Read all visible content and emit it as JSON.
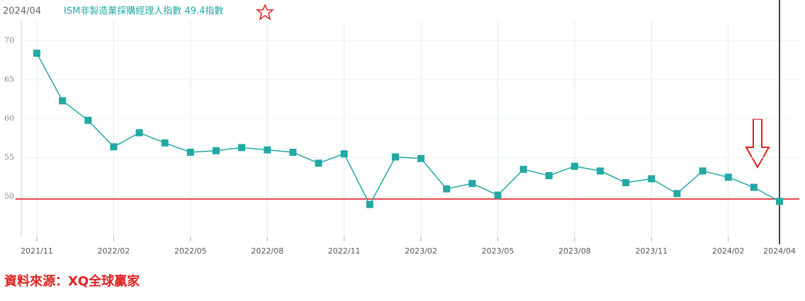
{
  "chart_data": {
    "type": "line",
    "date_label": "2024/04",
    "title": "ISM非製造業採購經理人指數 49.4指數",
    "source": "資料來源：XQ全球贏家",
    "categories": [
      "2021/11",
      null,
      null,
      "2022/02",
      null,
      null,
      "2022/05",
      null,
      null,
      "2022/08",
      null,
      null,
      "2022/11",
      null,
      null,
      "2023/02",
      null,
      null,
      "2023/05",
      null,
      null,
      "2023/08",
      null,
      null,
      "2023/11",
      null,
      null,
      "2024/02",
      null,
      "2024/04"
    ],
    "series": [
      {
        "name": "ISM非製造業採購經理人指數",
        "color": "#22a9a3",
        "values": [
          68.4,
          62.3,
          59.8,
          56.4,
          58.2,
          56.9,
          55.7,
          55.9,
          56.3,
          56.0,
          55.7,
          54.3,
          55.5,
          49.0,
          55.1,
          54.9,
          51.0,
          51.7,
          50.2,
          53.5,
          52.7,
          53.9,
          53.3,
          51.8,
          52.3,
          50.4,
          53.3,
          52.5,
          51.2,
          49.4
        ]
      }
    ],
    "reference_line": {
      "value": 49.7,
      "color": "#e8474c"
    },
    "ylim": [
      44.8,
      72.5
    ],
    "yticks": [
      50,
      55,
      60,
      65,
      70
    ],
    "grid": true
  }
}
